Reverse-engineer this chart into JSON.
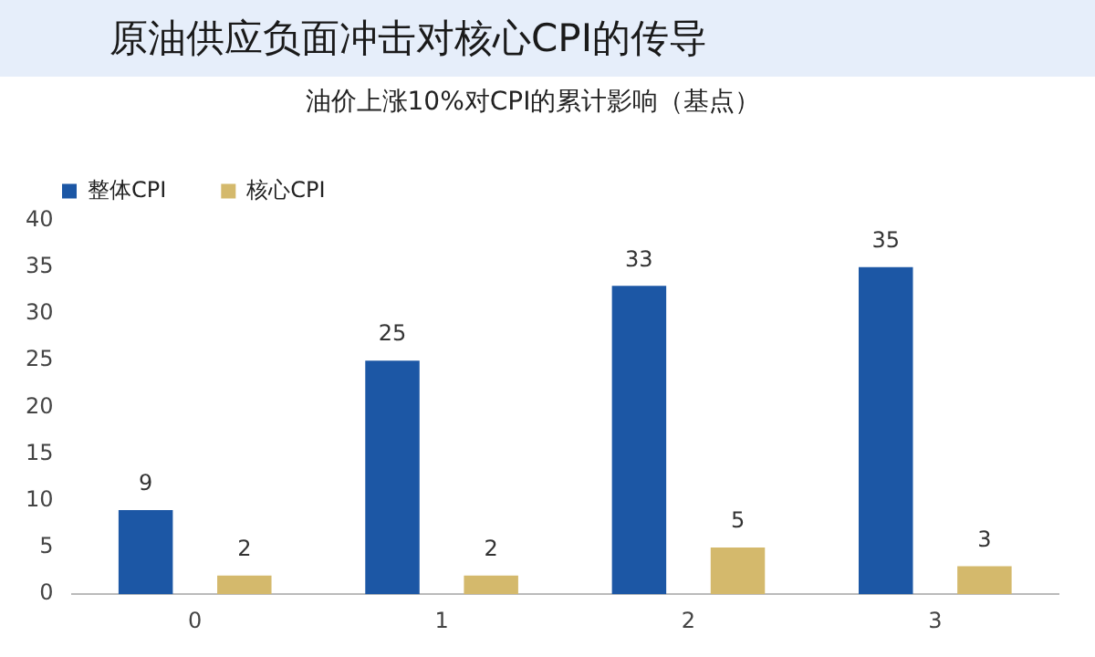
{
  "chart_data": {
    "type": "bar",
    "title": "原油供应负面冲击对核心CPI的传导",
    "subtitle": "油价上涨10%对CPI的累计影响（基点）",
    "categories": [
      "0",
      "1",
      "2",
      "3"
    ],
    "series": [
      {
        "name": "整体CPI",
        "color": "#1c57a5",
        "values": [
          9,
          25,
          33,
          35
        ]
      },
      {
        "name": "核心CPI",
        "color": "#d4b96c",
        "values": [
          2,
          2,
          5,
          3
        ]
      }
    ],
    "ylim": [
      0,
      40
    ],
    "yticks": [
      0,
      5,
      10,
      15,
      20,
      25,
      30,
      35,
      40
    ],
    "grid": false,
    "legend": "top left",
    "data_labels": true
  }
}
